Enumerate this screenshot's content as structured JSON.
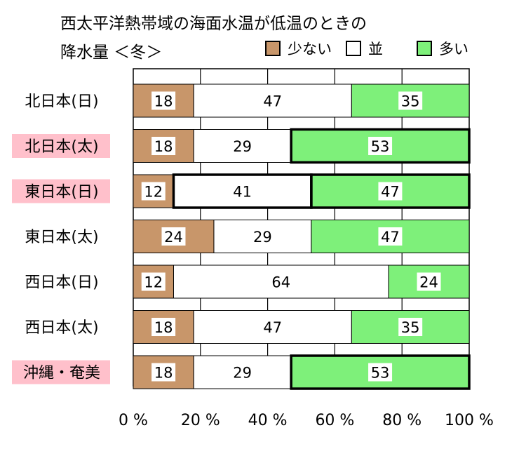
{
  "chart_data": {
    "type": "bar",
    "orientation": "horizontal",
    "stacked": "percent",
    "title": "西太平洋熱帯域の海面水温が低温のときの",
    "subtitle": "降水量 ＜冬＞",
    "categories": [
      "北日本(日)",
      "北日本(太)",
      "東日本(日)",
      "東日本(太)",
      "西日本(日)",
      "西日本(太)",
      "沖縄・奄美"
    ],
    "highlighted_categories": [
      "北日本(太)",
      "東日本(日)",
      "沖縄・奄美"
    ],
    "series": [
      {
        "name": "少ない",
        "color": "#c8966a",
        "values": [
          18,
          18,
          12,
          24,
          12,
          18,
          18
        ]
      },
      {
        "name": "並",
        "color": "#ffffff",
        "values": [
          47,
          29,
          41,
          29,
          64,
          47,
          29
        ]
      },
      {
        "name": "多い",
        "color": "#7ef07a",
        "values": [
          35,
          53,
          47,
          47,
          24,
          35,
          53
        ]
      }
    ],
    "emphasized_segments": [
      {
        "category": "北日本(太)",
        "series": "多い"
      },
      {
        "category": "東日本(日)",
        "series": "並"
      },
      {
        "category": "東日本(日)",
        "series": "多い"
      },
      {
        "category": "沖縄・奄美",
        "series": "多い"
      }
    ],
    "xticks": [
      "0 %",
      "20 %",
      "40 %",
      "60 %",
      "80 %",
      "100 %"
    ],
    "xlim": [
      0,
      100
    ],
    "grid": true,
    "legend": "top-right",
    "highlight_color": "#ffc0cb"
  }
}
